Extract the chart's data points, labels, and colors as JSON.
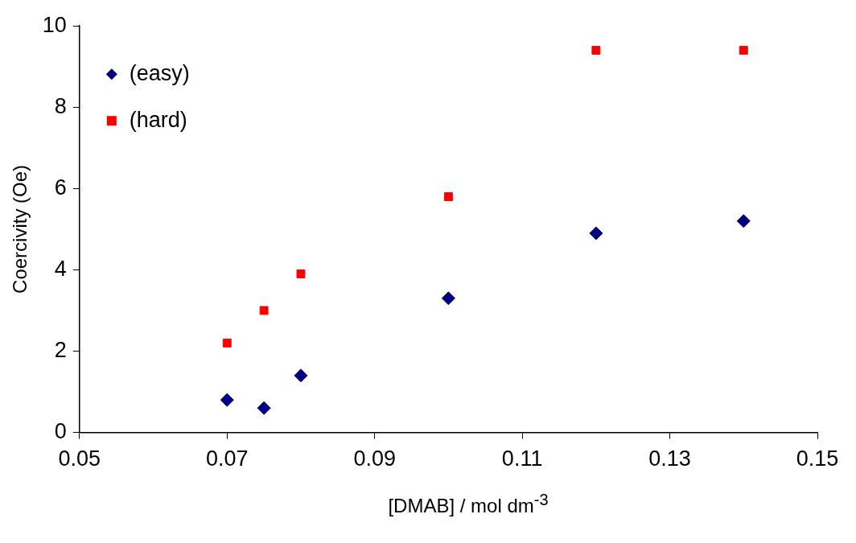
{
  "chart_data": {
    "type": "scatter",
    "xlabel": "[DMAB] / mol dm$^{-3}$",
    "ylabel": "Coercivity (Oe)",
    "series": [
      {
        "name": "(easy)",
        "color": "#000080",
        "marker": "diamond",
        "x": [
          0.07,
          0.075,
          0.08,
          0.1,
          0.12,
          0.14
        ],
        "values": [
          0.8,
          0.6,
          1.4,
          3.3,
          4.9,
          5.2
        ]
      },
      {
        "name": "(hard)",
        "color": "#ff0000",
        "marker": "square",
        "x": [
          0.07,
          0.075,
          0.08,
          0.1,
          0.12,
          0.14
        ],
        "values": [
          2.2,
          3.0,
          3.9,
          5.8,
          9.4,
          9.4
        ]
      }
    ],
    "xlim": [
      0.05,
      0.15
    ],
    "xticks": [
      0.05,
      0.07,
      0.09,
      0.11,
      0.13,
      0.15
    ],
    "ylim": [
      0,
      10
    ],
    "yticks": [
      0,
      2,
      4,
      6,
      8,
      10
    ],
    "grid": false,
    "legend": "top left"
  }
}
